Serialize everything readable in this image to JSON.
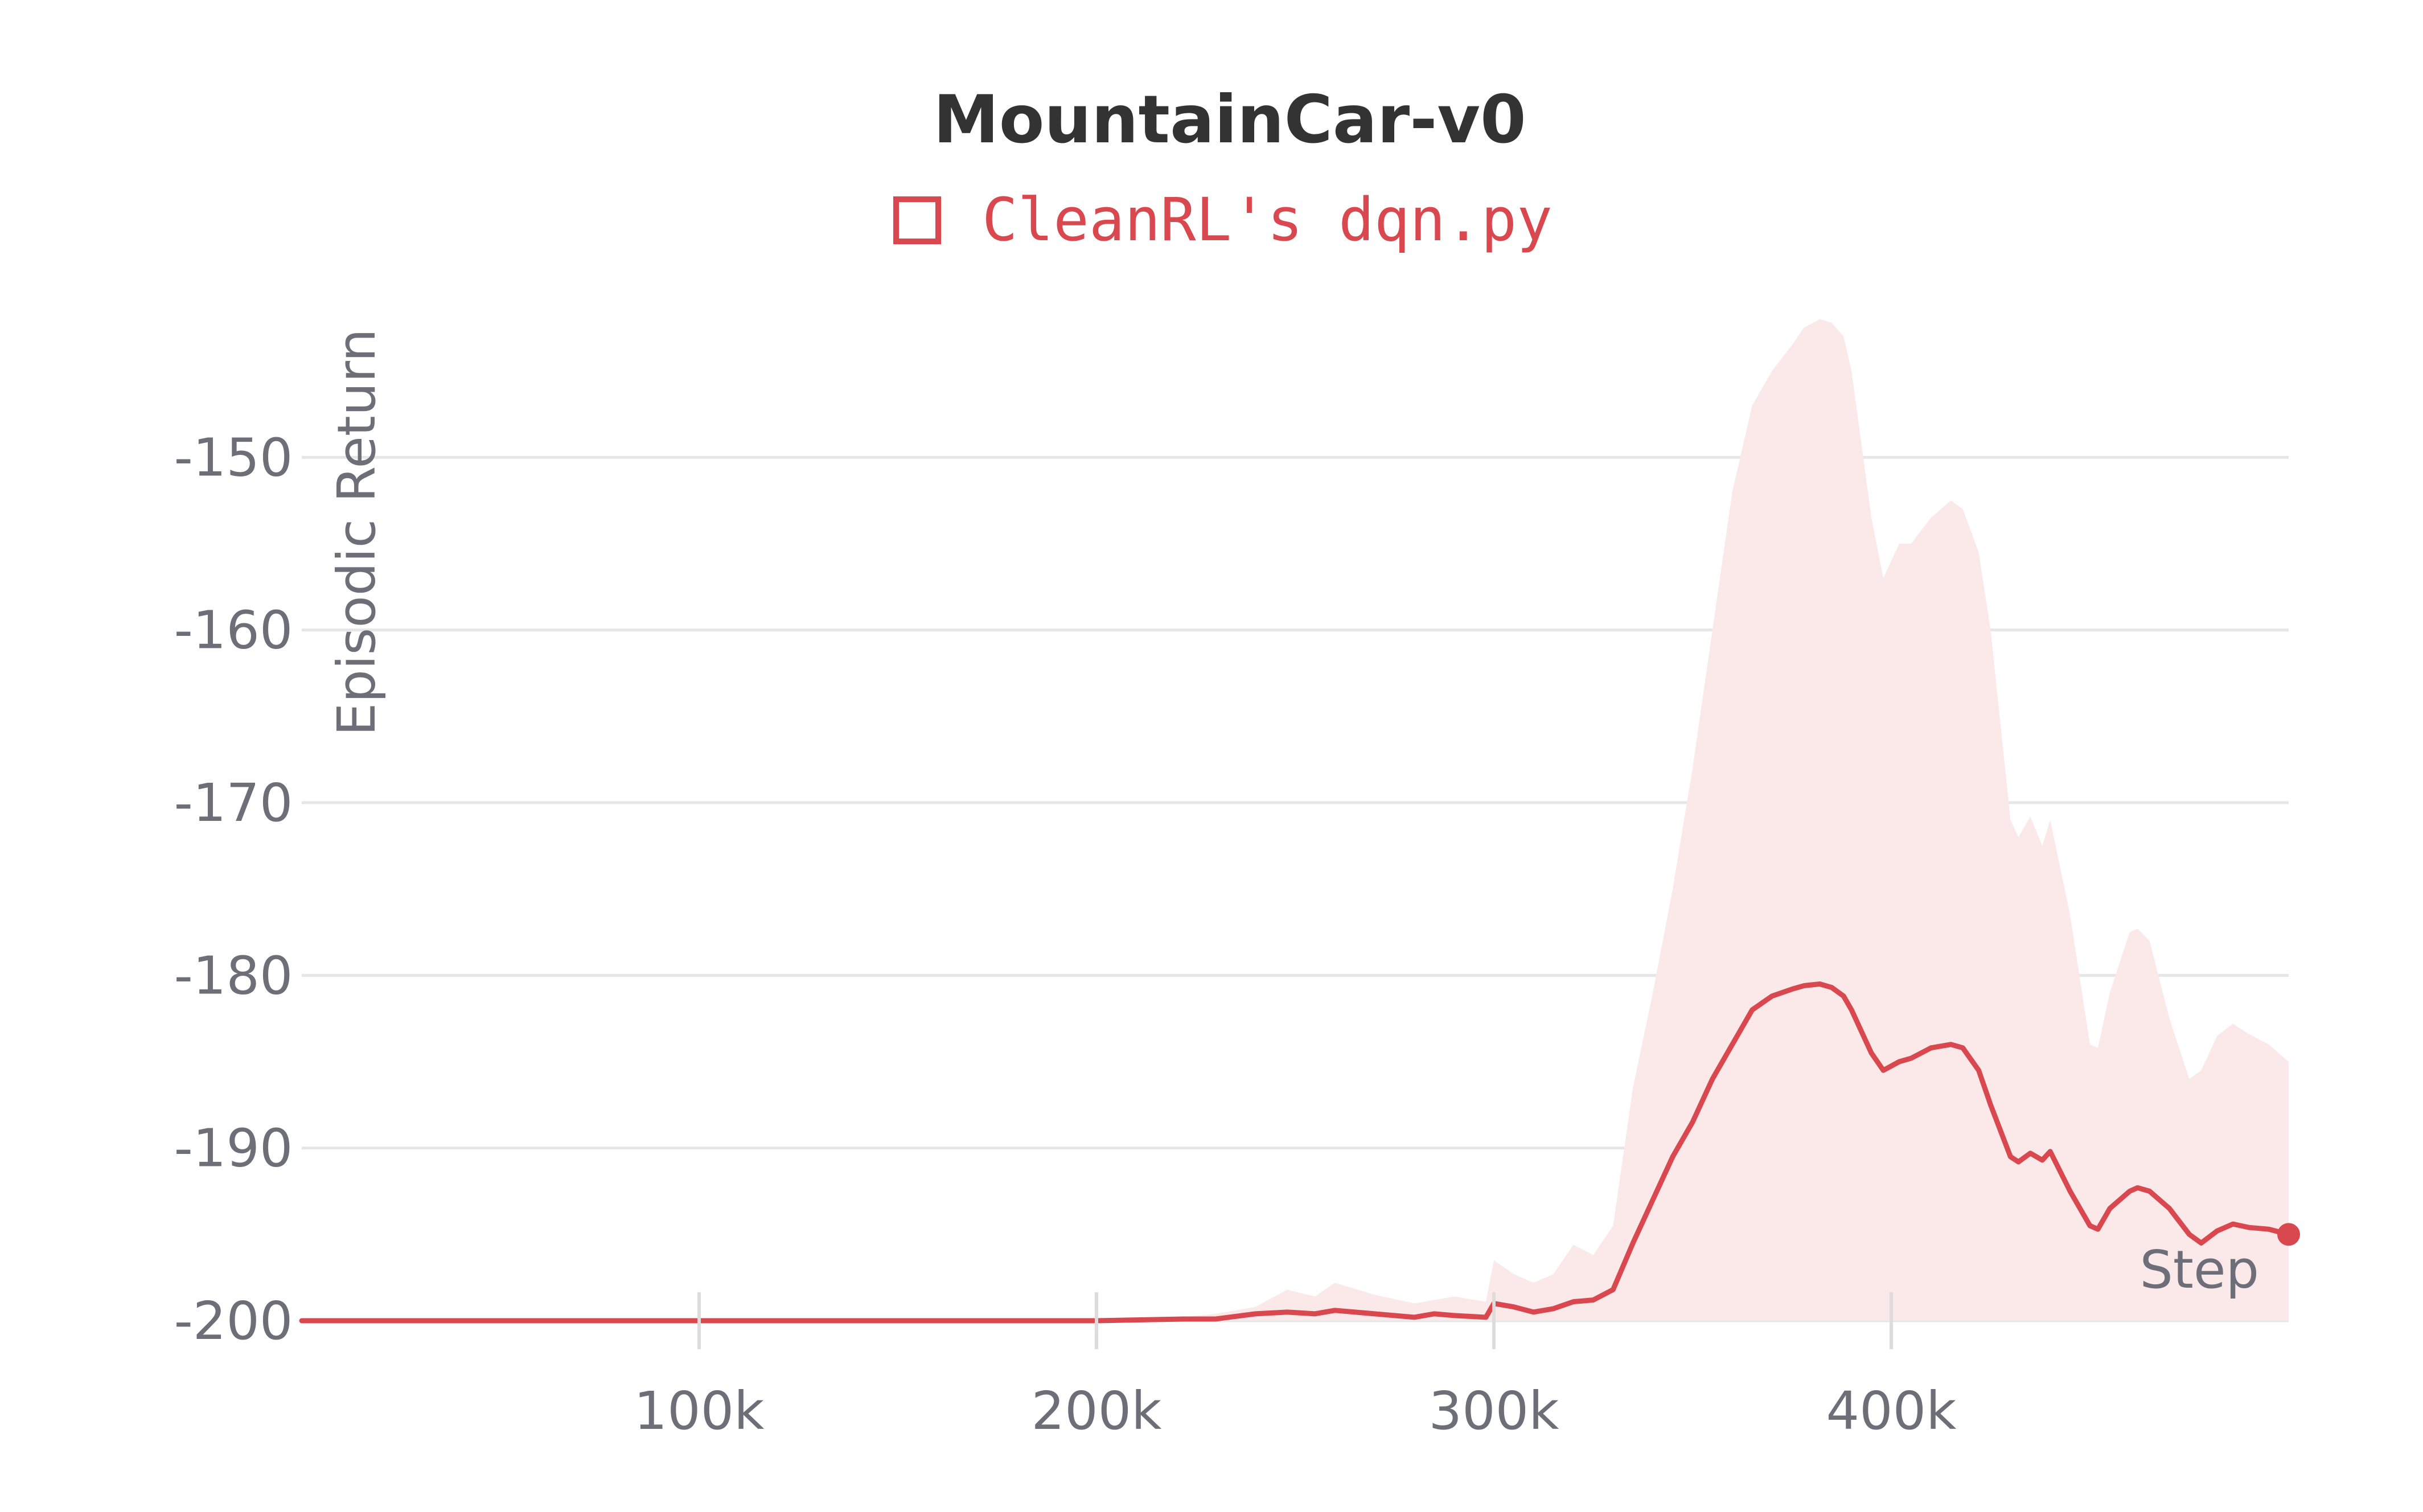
{
  "chart_data": {
    "type": "line",
    "title": "MountainCar-v0",
    "xlabel": "Step",
    "ylabel": "Episodic Return",
    "xlim": [
      0,
      500000
    ],
    "ylim": [
      -200,
      -140
    ],
    "yticks": [
      -200,
      -190,
      -180,
      -170,
      -160,
      -150
    ],
    "xticks": [
      100000,
      200000,
      300000,
      400000
    ],
    "xtick_labels": [
      "100k",
      "200k",
      "300k",
      "400k"
    ],
    "ytick_labels": [
      "-200",
      "-190",
      "-180",
      "-170",
      "-160",
      "-150"
    ],
    "grid": true,
    "legend_position": "top-center",
    "colors": {
      "line": "#d9484f",
      "band": "#fbe9ea",
      "grid": "#e6e6e6",
      "axis_text": "#6e6e78",
      "title": "#333333"
    },
    "series": [
      {
        "name": "CleanRL's dqn.py",
        "x": [
          0,
          100000,
          200000,
          222000,
          230000,
          240000,
          248000,
          255000,
          260000,
          270000,
          280000,
          285000,
          290000,
          298000,
          300000,
          305000,
          310000,
          315000,
          320000,
          325000,
          330000,
          335000,
          340000,
          345000,
          350000,
          355000,
          360000,
          365000,
          370000,
          375000,
          378000,
          382000,
          385000,
          388000,
          390000,
          395000,
          398000,
          402000,
          405000,
          410000,
          415000,
          418000,
          422000,
          425000,
          430000,
          432000,
          435000,
          438000,
          440000,
          445000,
          450000,
          452000,
          455000,
          460000,
          462000,
          465000,
          470000,
          475000,
          478000,
          482000,
          486000,
          490000,
          495000,
          500000
        ],
        "y": [
          -200,
          -200,
          -200,
          -199.9,
          -199.9,
          -199.6,
          -199.5,
          -199.6,
          -199.4,
          -199.6,
          -199.8,
          -199.6,
          -199.7,
          -199.8,
          -199.0,
          -199.2,
          -199.5,
          -199.3,
          -198.9,
          -198.8,
          -198.2,
          -195.5,
          -193.0,
          -190.5,
          -188.5,
          -186.0,
          -184.0,
          -182.0,
          -181.2,
          -180.8,
          -180.6,
          -180.5,
          -180.7,
          -181.2,
          -182.0,
          -184.5,
          -185.5,
          -185.0,
          -184.8,
          -184.2,
          -184.0,
          -184.2,
          -185.5,
          -187.5,
          -190.5,
          -190.8,
          -190.3,
          -190.7,
          -190.2,
          -192.5,
          -194.5,
          -194.7,
          -193.5,
          -192.5,
          -192.3,
          -192.5,
          -193.5,
          -195.0,
          -195.5,
          -194.8,
          -194.4,
          -194.6,
          -194.7,
          -195.0
        ],
        "lower": [
          -200,
          -200,
          -200,
          -200,
          -200,
          -200,
          -200,
          -200,
          -200,
          -200,
          -200,
          -200,
          -200,
          -200,
          -200,
          -200,
          -200,
          -200,
          -200,
          -200,
          -200,
          -200,
          -200,
          -200,
          -200,
          -200,
          -200,
          -200,
          -200,
          -200,
          -200,
          -200,
          -200,
          -200,
          -200,
          -200,
          -200,
          -200,
          -200,
          -200,
          -200,
          -200,
          -200,
          -200,
          -200,
          -200,
          -200,
          -200,
          -200,
          -200,
          -200,
          -200,
          -200,
          -200,
          -200,
          -200,
          -200,
          -200,
          -200,
          -200,
          -200,
          -200,
          -200,
          -200
        ],
        "upper": [
          -200,
          -200,
          -200,
          -199.8,
          -199.6,
          -199.2,
          -198.2,
          -198.6,
          -197.8,
          -198.5,
          -199.0,
          -198.8,
          -198.6,
          -198.9,
          -196.5,
          -197.3,
          -197.8,
          -197.3,
          -195.6,
          -196.2,
          -194.5,
          -186.5,
          -181.0,
          -175.0,
          -168.0,
          -160.0,
          -152.0,
          -147.0,
          -145.0,
          -143.5,
          -142.5,
          -142.0,
          -142.2,
          -143.0,
          -145.0,
          -153.5,
          -157.0,
          -155.0,
          -155.0,
          -153.5,
          -152.5,
          -153.0,
          -155.5,
          -160.0,
          -171.0,
          -172.0,
          -170.8,
          -172.5,
          -171.0,
          -176.5,
          -184.0,
          -184.2,
          -181.0,
          -177.5,
          -177.3,
          -178.0,
          -182.5,
          -186.0,
          -185.5,
          -183.5,
          -182.8,
          -183.4,
          -184.0,
          -185.0
        ]
      }
    ]
  }
}
